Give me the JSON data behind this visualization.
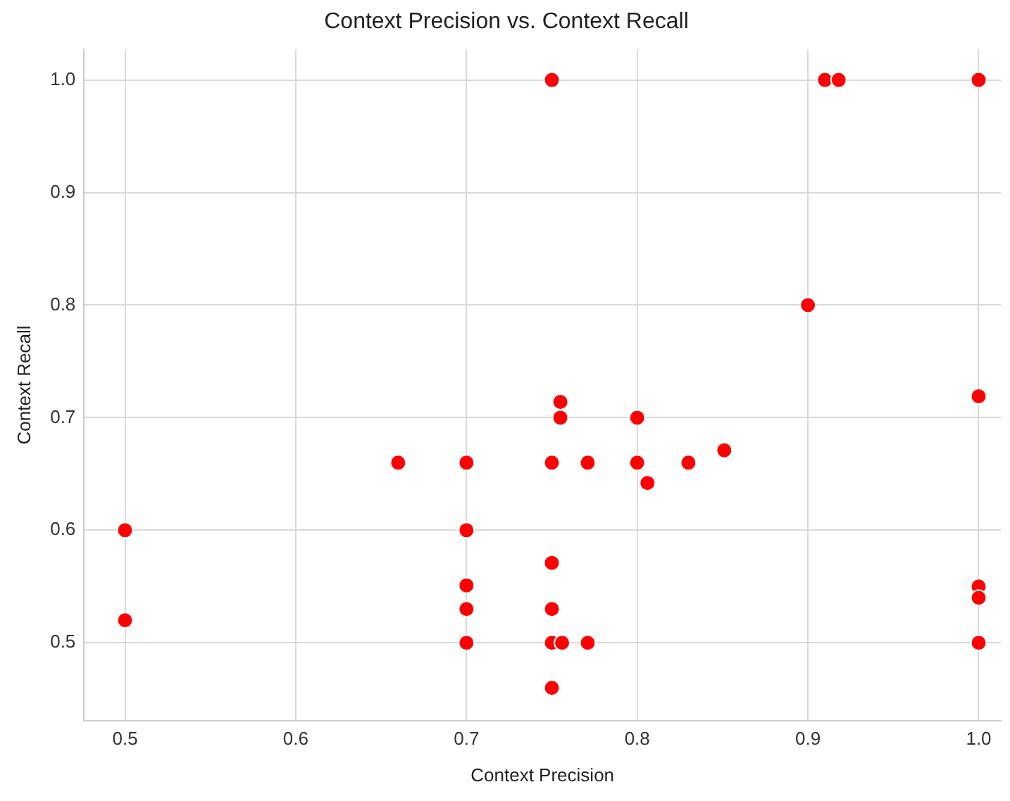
{
  "chart_data": {
    "type": "scatter",
    "title": "Context Precision vs. Context Recall",
    "xlabel": "Context Precision",
    "ylabel": "Context Recall",
    "x": [
      0.75,
      0.91,
      0.918,
      1.0,
      0.9,
      1.0,
      0.755,
      0.755,
      0.8,
      0.66,
      0.7,
      0.75,
      0.771,
      0.8,
      0.83,
      0.851,
      0.806,
      0.5,
      0.7,
      0.75,
      0.7,
      1.0,
      1.0,
      0.7,
      0.75,
      0.5,
      0.7,
      0.75,
      0.756,
      0.771,
      1.0,
      0.75
    ],
    "series": [
      {
        "color": "#ff0000",
        "values": [
          1.0,
          1.0,
          1.0,
          1.0,
          0.8,
          0.719,
          0.714,
          0.7,
          0.7,
          0.66,
          0.66,
          0.66,
          0.66,
          0.66,
          0.66,
          0.671,
          0.642,
          0.6,
          0.6,
          0.571,
          0.551,
          0.55,
          0.54,
          0.53,
          0.53,
          0.52,
          0.5,
          0.5,
          0.5,
          0.5,
          0.5,
          0.46
        ]
      }
    ],
    "xlim": [
      0.476,
      1.013
    ],
    "ylim": [
      0.431,
      1.027
    ],
    "xticks": [
      0.5,
      0.6,
      0.7,
      0.8,
      0.9,
      {
        "value": 1,
        "label": "1.0"
      }
    ],
    "yticks": [
      0.5,
      0.6,
      0.7,
      0.8,
      0.9,
      {
        "value": 1,
        "label": "1.0"
      }
    ],
    "grid": true,
    "legend": false,
    "marker": "circle"
  }
}
